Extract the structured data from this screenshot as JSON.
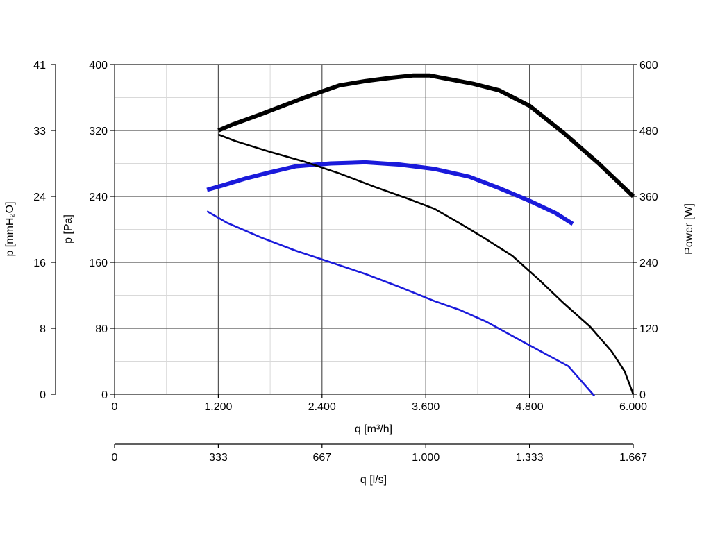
{
  "chart_data": {
    "type": "line",
    "grid": true,
    "axes": {
      "x_primary": {
        "label": "q [m³/h]",
        "range": [
          0,
          6000
        ],
        "ticks": [
          0,
          1200,
          2400,
          3600,
          4800,
          6000
        ],
        "tick_labels": [
          "0",
          "1.200",
          "2.400",
          "3.600",
          "4.800",
          "6.000"
        ]
      },
      "x_secondary": {
        "label": "q [l/s]",
        "range": [
          0,
          1667
        ],
        "tick_labels": [
          "0",
          "333",
          "667",
          "1.000",
          "1.333",
          "1.667"
        ]
      },
      "y_pressure": {
        "label": "p [Pa]",
        "range": [
          0,
          400
        ],
        "ticks": [
          0,
          80,
          160,
          240,
          320,
          400
        ],
        "tick_labels": [
          "0",
          "80",
          "160",
          "240",
          "320",
          "400"
        ]
      },
      "y_pressure_mmh2o": {
        "label": "p [mmH₂O]",
        "range": [
          0,
          41
        ],
        "tick_labels": [
          "0",
          "8",
          "16",
          "24",
          "33",
          "41"
        ]
      },
      "y_power": {
        "label": "Power [W]",
        "range": [
          0,
          600
        ],
        "ticks": [
          0,
          120,
          240,
          360,
          480,
          600
        ],
        "tick_labels": [
          "0",
          "120",
          "240",
          "360",
          "480",
          "600"
        ]
      }
    },
    "series": [
      {
        "axis": "power",
        "color": "#000000",
        "weight": "thick",
        "points": [
          [
            1200,
            480
          ],
          [
            1350,
            490
          ],
          [
            1700,
            510
          ],
          [
            2200,
            540
          ],
          [
            2600,
            562
          ],
          [
            2900,
            570
          ],
          [
            3200,
            576
          ],
          [
            3450,
            580
          ],
          [
            3650,
            580
          ],
          [
            3850,
            574
          ],
          [
            4150,
            565
          ],
          [
            4450,
            553
          ],
          [
            4800,
            525
          ],
          [
            5200,
            475
          ],
          [
            5600,
            420
          ],
          [
            6000,
            360
          ]
        ]
      },
      {
        "axis": "power",
        "color": "#1a1adb",
        "weight": "thick",
        "points": [
          [
            1070,
            372
          ],
          [
            1250,
            380
          ],
          [
            1500,
            392
          ],
          [
            1800,
            404
          ],
          [
            2100,
            415
          ],
          [
            2500,
            420
          ],
          [
            2900,
            422
          ],
          [
            3300,
            418
          ],
          [
            3700,
            410
          ],
          [
            4100,
            396
          ],
          [
            4450,
            375
          ],
          [
            4800,
            352
          ],
          [
            5100,
            330
          ],
          [
            5300,
            310
          ]
        ]
      },
      {
        "axis": "pressure",
        "color": "#000000",
        "weight": "thin",
        "points": [
          [
            1200,
            315
          ],
          [
            1400,
            307
          ],
          [
            1800,
            294
          ],
          [
            2200,
            282
          ],
          [
            2600,
            268
          ],
          [
            3000,
            252
          ],
          [
            3400,
            237
          ],
          [
            3700,
            225
          ],
          [
            4000,
            207
          ],
          [
            4300,
            188
          ],
          [
            4600,
            168
          ],
          [
            4900,
            140
          ],
          [
            5200,
            110
          ],
          [
            5500,
            82
          ],
          [
            5750,
            52
          ],
          [
            5900,
            28
          ],
          [
            6000,
            0
          ]
        ]
      },
      {
        "axis": "pressure",
        "color": "#1a1adb",
        "weight": "thin",
        "points": [
          [
            1070,
            222
          ],
          [
            1300,
            208
          ],
          [
            1700,
            190
          ],
          [
            2100,
            174
          ],
          [
            2500,
            160
          ],
          [
            2900,
            146
          ],
          [
            3300,
            130
          ],
          [
            3700,
            113
          ],
          [
            4000,
            102
          ],
          [
            4300,
            88
          ],
          [
            4650,
            68
          ],
          [
            5000,
            48
          ],
          [
            5250,
            34
          ],
          [
            5400,
            16
          ],
          [
            5550,
            -2
          ]
        ]
      }
    ]
  }
}
